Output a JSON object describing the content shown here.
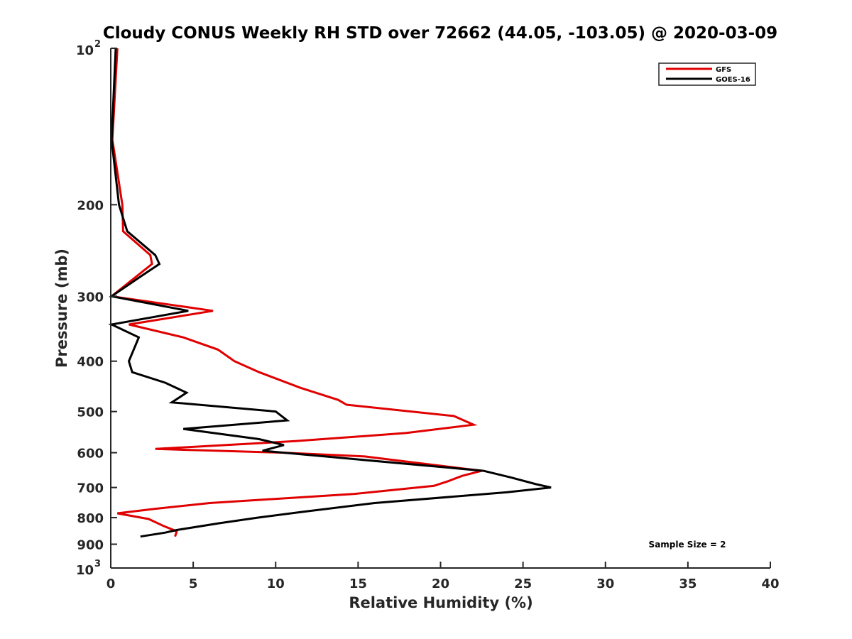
{
  "chart_data": {
    "type": "line",
    "title": "Cloudy CONUS Weekly RH STD over 72662 (44.05, -103.05) @ 2020-03-09",
    "xlabel": "Relative Humidity (%)",
    "ylabel": "Pressure (mb)",
    "xlim": [
      0,
      40
    ],
    "ylim": [
      100,
      1000
    ],
    "yscale": "log",
    "y_reversed": true,
    "grid": false,
    "legend_position": "top-right",
    "x_ticks": [
      "0",
      "5",
      "10",
      "15",
      "20",
      "25",
      "30",
      "35",
      "40"
    ],
    "y_ticks": [
      {
        "value": 100,
        "base": "10",
        "exp": "2"
      },
      {
        "value": 200,
        "label": "200"
      },
      {
        "value": 300,
        "label": "300"
      },
      {
        "value": 400,
        "label": "400"
      },
      {
        "value": 500,
        "label": "500"
      },
      {
        "value": 600,
        "label": "600"
      },
      {
        "value": 700,
        "label": "700"
      },
      {
        "value": 800,
        "label": "800"
      },
      {
        "value": 900,
        "label": "900"
      },
      {
        "value": 1000,
        "base": "10",
        "exp": "3"
      }
    ],
    "annotation": "Sample Size = 2",
    "series": [
      {
        "name": "GFS",
        "color": "#e00000",
        "points": [
          [
            0.4,
            100
          ],
          [
            0.1,
            150
          ],
          [
            0.7,
            200
          ],
          [
            0.75,
            225
          ],
          [
            2.4,
            250
          ],
          [
            2.5,
            260
          ],
          [
            0.05,
            300
          ],
          [
            6.2,
            320
          ],
          [
            1.1,
            340
          ],
          [
            4.4,
            360
          ],
          [
            6.5,
            380
          ],
          [
            7.5,
            400
          ],
          [
            9.0,
            420
          ],
          [
            11.5,
            450
          ],
          [
            13.8,
            475
          ],
          [
            14.3,
            485
          ],
          [
            20.8,
            510
          ],
          [
            22.0,
            530
          ],
          [
            17.9,
            550
          ],
          [
            11.2,
            570
          ],
          [
            2.7,
            590
          ],
          [
            10.5,
            600
          ],
          [
            15.4,
            610
          ],
          [
            18.1,
            625
          ],
          [
            22.5,
            650
          ],
          [
            21.3,
            665
          ],
          [
            20.5,
            680
          ],
          [
            19.6,
            695
          ],
          [
            14.8,
            720
          ],
          [
            6.0,
            750
          ],
          [
            2.6,
            770
          ],
          [
            0.4,
            785
          ],
          [
            2.3,
            805
          ],
          [
            3.2,
            830
          ],
          [
            4.0,
            850
          ],
          [
            3.9,
            870
          ]
        ]
      },
      {
        "name": "GOES-16",
        "color": "#000000",
        "points": [
          [
            0.3,
            100
          ],
          [
            0.05,
            150
          ],
          [
            0.5,
            200
          ],
          [
            1.0,
            225
          ],
          [
            2.7,
            250
          ],
          [
            2.95,
            260
          ],
          [
            1.8,
            275
          ],
          [
            0.05,
            300
          ],
          [
            4.7,
            320
          ],
          [
            0.05,
            340
          ],
          [
            1.7,
            360
          ],
          [
            1.1,
            400
          ],
          [
            1.3,
            420
          ],
          [
            3.3,
            440
          ],
          [
            4.6,
            460
          ],
          [
            3.7,
            480
          ],
          [
            10.0,
            500
          ],
          [
            10.7,
            520
          ],
          [
            4.4,
            540
          ],
          [
            9.0,
            565
          ],
          [
            10.5,
            580
          ],
          [
            9.2,
            595
          ],
          [
            22.6,
            650
          ],
          [
            24.3,
            670
          ],
          [
            25.8,
            690
          ],
          [
            26.7,
            700
          ],
          [
            24.0,
            715
          ],
          [
            16.0,
            750
          ],
          [
            11.6,
            780
          ],
          [
            8.9,
            800
          ],
          [
            6.6,
            820
          ],
          [
            4.0,
            845
          ],
          [
            3.3,
            855
          ],
          [
            1.8,
            870
          ]
        ]
      }
    ]
  }
}
